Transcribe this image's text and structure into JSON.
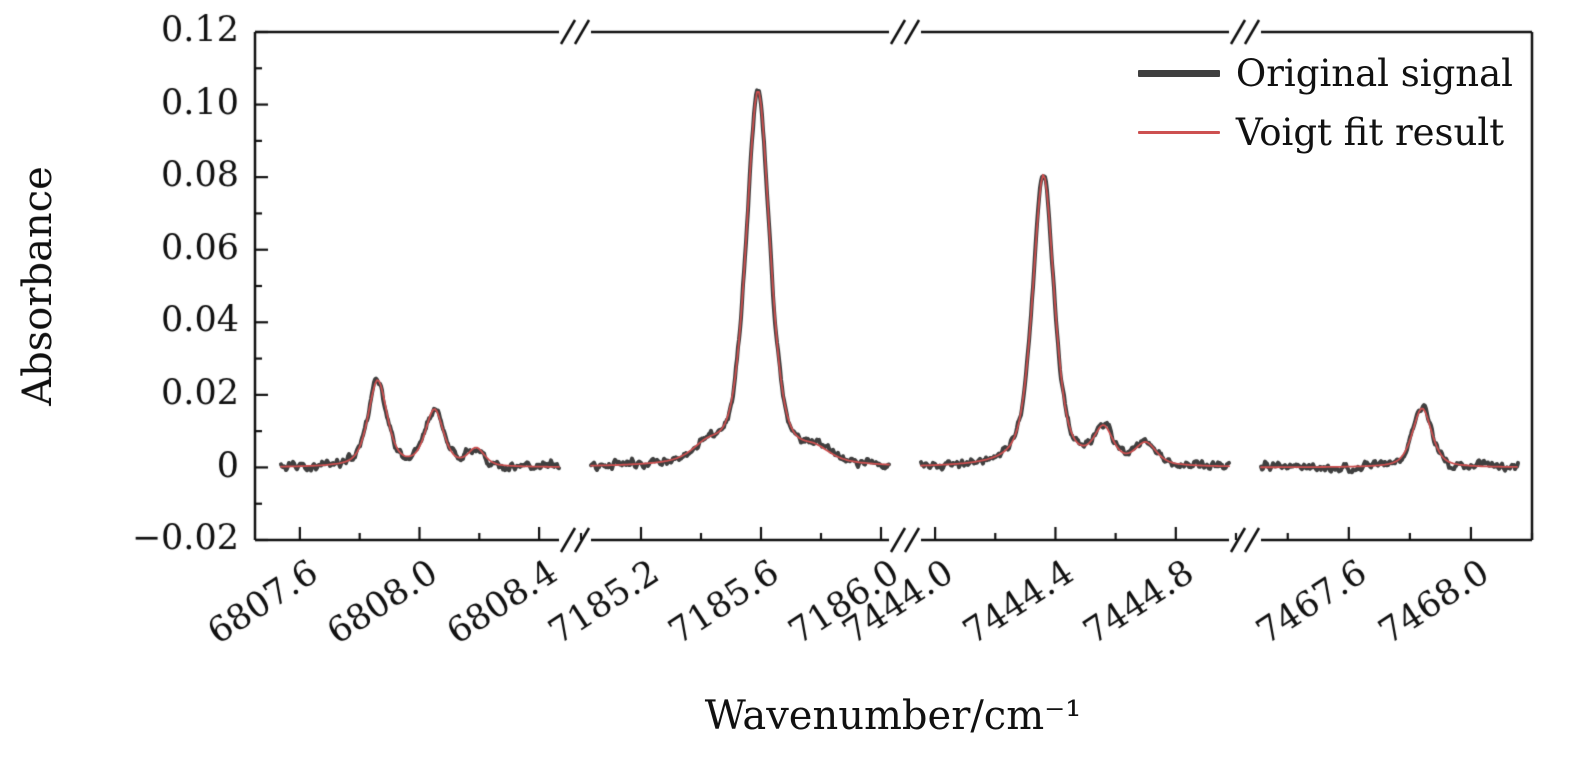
{
  "chart_data": {
    "type": "line",
    "title": "",
    "xlabel": "Wavenumber/cm⁻¹",
    "ylabel": "Absorbance",
    "ylim": [
      -0.02,
      0.12
    ],
    "y_minor_step": 0.01,
    "y_ticks": [
      {
        "value": -0.02,
        "label": "−0.02"
      },
      {
        "value": 0,
        "label": "0"
      },
      {
        "value": 0.02,
        "label": "0.02"
      },
      {
        "value": 0.04,
        "label": "0.04"
      },
      {
        "value": 0.06,
        "label": "0.06"
      },
      {
        "value": 0.08,
        "label": "0.08"
      },
      {
        "value": 0.1,
        "label": "0.10"
      },
      {
        "value": 0.12,
        "label": "0.12"
      }
    ],
    "legend_position": "top-right",
    "grid": false,
    "broken_x_axis": true,
    "series": [
      {
        "name": "Original signal",
        "color": "#3f3f3f",
        "style": "thick-noisy"
      },
      {
        "name": "Voigt fit result",
        "color": "#cd5050",
        "style": "thin-smooth"
      }
    ],
    "noise_amplitude": 0.0035,
    "segments": [
      {
        "xmin": 6807.45,
        "xmax": 6808.52,
        "ticks": [
          6807.6,
          6808.0,
          6808.4
        ],
        "tick_labels": [
          "6807.6",
          "6808.0",
          "6808.4"
        ],
        "minor_step": 0.2,
        "peaks": [
          {
            "center": 6807.86,
            "amplitude": 0.0238,
            "fwhm": 0.075
          },
          {
            "center": 6808.05,
            "amplitude": 0.0155,
            "fwhm": 0.072
          },
          {
            "center": 6808.19,
            "amplitude": 0.0048,
            "fwhm": 0.065
          }
        ]
      },
      {
        "xmin": 7184.98,
        "xmax": 7186.08,
        "ticks": [
          7185.2,
          7185.6,
          7186.0
        ],
        "tick_labels": [
          "7185.2",
          "7185.6",
          "7186.0"
        ],
        "minor_step": 0.2,
        "peaks": [
          {
            "center": 7185.59,
            "amplitude": 0.1035,
            "fwhm": 0.095
          },
          {
            "center": 7185.42,
            "amplitude": 0.004,
            "fwhm": 0.12
          },
          {
            "center": 7185.78,
            "amplitude": 0.0032,
            "fwhm": 0.12
          }
        ]
      },
      {
        "xmin": 7443.9,
        "xmax": 7445.03,
        "ticks": [
          7444.0,
          7444.4,
          7444.8
        ],
        "tick_labels": [
          "7444.0",
          "7444.4",
          "7444.8"
        ],
        "minor_step": 0.2,
        "peaks": [
          {
            "center": 7444.36,
            "amplitude": 0.0805,
            "fwhm": 0.085
          },
          {
            "center": 7444.56,
            "amplitude": 0.0095,
            "fwhm": 0.075
          },
          {
            "center": 7444.7,
            "amplitude": 0.006,
            "fwhm": 0.085
          }
        ]
      },
      {
        "xmin": 7467.26,
        "xmax": 7468.2,
        "ticks": [
          7467.6,
          7468.0
        ],
        "tick_labels": [
          "7467.6",
          "7468.0"
        ],
        "minor_step": 0.2,
        "peaks": [
          {
            "center": 7467.84,
            "amplitude": 0.0163,
            "fwhm": 0.075
          }
        ]
      }
    ]
  }
}
